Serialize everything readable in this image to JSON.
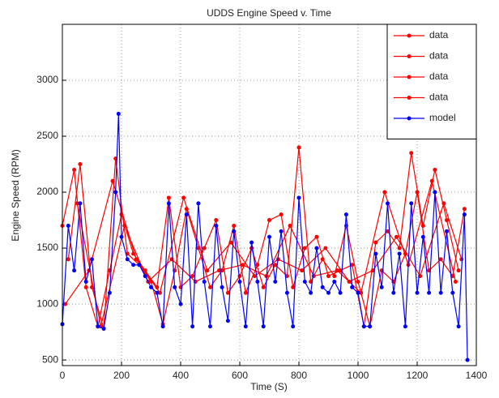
{
  "chart_data": {
    "type": "line",
    "title": "UDDS Engine Speed v. Time",
    "xlabel": "Time (S)",
    "ylabel": "Engine Speed (RPM)",
    "xlim": [
      0,
      1400
    ],
    "xticks": [
      0,
      200,
      400,
      600,
      800,
      1000,
      1200,
      1400
    ],
    "ylim": [
      450,
      3500
    ],
    "yticks": [
      500,
      1000,
      1500,
      2000,
      2500,
      3000
    ],
    "grid": true,
    "legend": "upper right",
    "series": [
      {
        "name": "data",
        "color": "#ff0000",
        "x": [
          0,
          40,
          80,
          120,
          160,
          200,
          240,
          280,
          320,
          360,
          400,
          440,
          480,
          520,
          560,
          600,
          640,
          680,
          720,
          760,
          800,
          840,
          880,
          920,
          960,
          1000,
          1040,
          1080,
          1120,
          1160,
          1200,
          1240,
          1280,
          1320,
          1360
        ],
        "values": [
          1700,
          2200,
          1150,
          800,
          1300,
          1800,
          1450,
          1300,
          1150,
          1950,
          1150,
          1250,
          1500,
          1750,
          1100,
          1250,
          1500,
          1150,
          1350,
          1250,
          2400,
          1200,
          1400,
          1250,
          1700,
          1200,
          800,
          1300,
          1200,
          1450,
          2000,
          1300,
          1400,
          1250,
          1850
        ]
      },
      {
        "name": "data",
        "color": "#ff0000",
        "x": [
          20,
          60,
          100,
          140,
          180,
          220,
          260,
          300,
          340,
          380,
          420,
          460,
          500,
          540,
          580,
          620,
          660,
          700,
          740,
          780,
          820,
          860,
          900,
          940,
          980,
          1020,
          1060,
          1100,
          1140,
          1180,
          1220,
          1260,
          1300,
          1340
        ],
        "values": [
          1400,
          2250,
          1150,
          780,
          2300,
          1450,
          1350,
          1200,
          820,
          1300,
          1850,
          1500,
          1150,
          1300,
          1700,
          1100,
          1350,
          1750,
          1800,
          1150,
          1500,
          1600,
          1250,
          1300,
          1350,
          800,
          1550,
          1650,
          1500,
          2350,
          1700,
          2200,
          1750,
          1300
        ]
      },
      {
        "name": "data",
        "color": "#ff0000",
        "x": [
          10,
          90,
          170,
          250,
          330,
          410,
          490,
          570,
          650,
          730,
          810,
          890,
          970,
          1050,
          1130,
          1210,
          1290,
          1350
        ],
        "values": [
          1000,
          1300,
          2100,
          1400,
          1100,
          1950,
          1300,
          1550,
          1250,
          1400,
          1300,
          1500,
          1200,
          1300,
          1600,
          1250,
          1900,
          1400
        ]
      },
      {
        "name": "data",
        "color": "#ff0000",
        "x": [
          50,
          130,
          210,
          290,
          370,
          450,
          530,
          610,
          690,
          770,
          850,
          930,
          1010,
          1090,
          1170,
          1250,
          1330
        ],
        "values": [
          1900,
          800,
          1700,
          1200,
          1400,
          1200,
          1300,
          1350,
          1250,
          1700,
          1250,
          1300,
          1100,
          2000,
          1350,
          2100,
          1200
        ]
      },
      {
        "name": "model",
        "color": "#0000ff",
        "x": [
          0,
          20,
          40,
          60,
          80,
          100,
          120,
          140,
          160,
          180,
          190,
          200,
          220,
          240,
          260,
          280,
          300,
          320,
          340,
          360,
          380,
          400,
          420,
          440,
          460,
          480,
          500,
          520,
          540,
          560,
          580,
          600,
          620,
          640,
          660,
          680,
          700,
          720,
          740,
          760,
          780,
          800,
          820,
          840,
          860,
          880,
          900,
          920,
          940,
          960,
          980,
          1000,
          1020,
          1040,
          1060,
          1080,
          1100,
          1120,
          1140,
          1160,
          1180,
          1200,
          1220,
          1240,
          1260,
          1280,
          1300,
          1320,
          1340,
          1360,
          1370
        ],
        "values": [
          820,
          1700,
          1300,
          1900,
          1200,
          1400,
          800,
          780,
          1100,
          2000,
          2700,
          1600,
          1400,
          1350,
          1350,
          1250,
          1150,
          1100,
          800,
          1900,
          1150,
          1000,
          1800,
          800,
          1900,
          1200,
          800,
          1700,
          1150,
          850,
          1650,
          1200,
          800,
          1550,
          1200,
          800,
          1600,
          1200,
          1650,
          1100,
          800,
          1950,
          1200,
          1100,
          1500,
          1150,
          1100,
          1200,
          1100,
          1800,
          1150,
          1100,
          800,
          800,
          1450,
          1150,
          1900,
          1100,
          1450,
          800,
          1900,
          1100,
          1600,
          1100,
          2000,
          1100,
          1650,
          1100,
          800,
          1800,
          500
        ]
      }
    ]
  }
}
